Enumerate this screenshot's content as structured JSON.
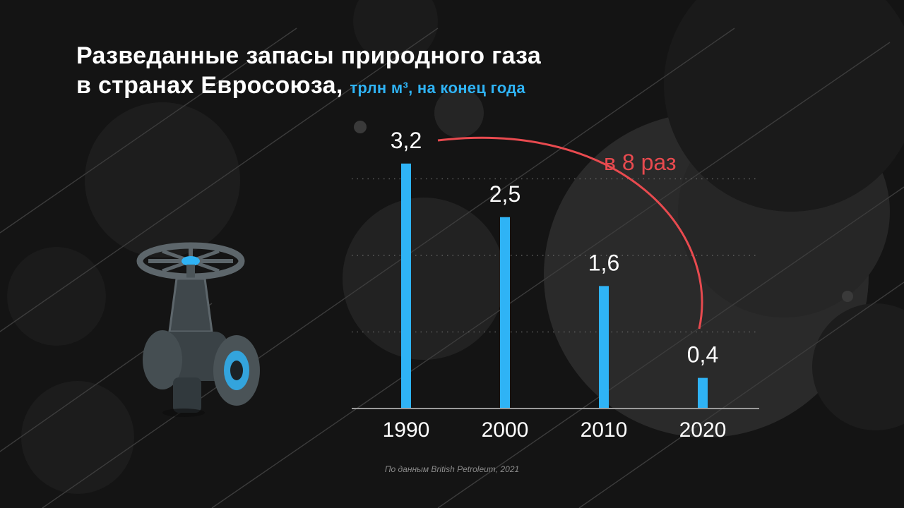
{
  "title": {
    "line1": "Разведанные запасы природного газа",
    "line2": "в странах Евросоюза,",
    "unit": "трлн м³, на конец года"
  },
  "colors": {
    "bar": "#2fb3f5",
    "annotation": "#e84a4f",
    "background": "#141414"
  },
  "chart_data": {
    "type": "bar",
    "title": "Разведанные запасы природного газа в странах Евросоюза, трлн м³, на конец года",
    "categories": [
      "1990",
      "2000",
      "2010",
      "2020"
    ],
    "values": [
      3.2,
      2.5,
      1.6,
      0.4
    ],
    "value_labels": [
      "3,2",
      "2,5",
      "1,6",
      "0,4"
    ],
    "ylim": [
      0,
      3.5
    ],
    "grid": true,
    "annotation": "в 8 раз"
  },
  "source": "По данным British Petroleum, 2021",
  "icon": "gas-valve-icon"
}
